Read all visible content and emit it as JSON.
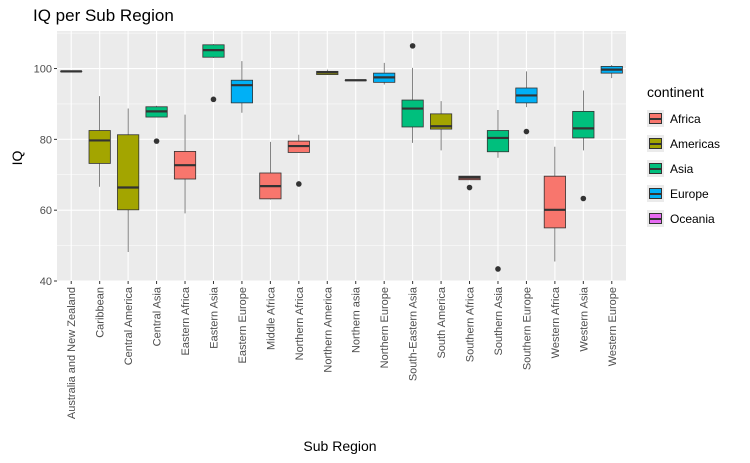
{
  "chart_data": {
    "type": "boxplot",
    "title": "IQ per Sub Region",
    "xlabel": "Sub Region",
    "ylabel": "IQ",
    "ylim": [
      40,
      110.6
    ],
    "yticks": [
      40,
      60,
      80,
      100
    ],
    "grid": true,
    "legend_position": "right",
    "legend": {
      "title": "continent",
      "items": [
        {
          "name": "Africa",
          "color": "#F8766D"
        },
        {
          "name": "Americas",
          "color": "#A3A500"
        },
        {
          "name": "Asia",
          "color": "#00BF7D"
        },
        {
          "name": "Europe",
          "color": "#00B0F6"
        },
        {
          "name": "Oceania",
          "color": "#E76BF3"
        }
      ]
    },
    "categories": [
      "Australia and New Zealand",
      "Caribbean",
      "Central America",
      "Central Asia",
      "Eastern Africa",
      "Eastern Asia",
      "Eastern Europe",
      "Middle Africa",
      "Northern Africa",
      "Northern America",
      "Northern asia",
      "Northern Europe",
      "South-Eastern Asia",
      "South America",
      "Southern Africa",
      "Southern Asia",
      "Southern Europe",
      "Western Africa",
      "Western Asia",
      "Western Europe"
    ],
    "boxes": [
      {
        "continent": "Oceania",
        "min": 99.2,
        "q1": 99.2,
        "median": 99.2,
        "q3": 99.2,
        "max": 99.2,
        "outliers": []
      },
      {
        "continent": "Americas",
        "min": 66.6,
        "q1": 73.2,
        "median": 79.7,
        "q3": 82.5,
        "max": 92.2,
        "outliers": []
      },
      {
        "continent": "Americas",
        "min": 48.2,
        "q1": 60.1,
        "median": 66.4,
        "q3": 81.3,
        "max": 88.7,
        "outliers": []
      },
      {
        "continent": "Asia",
        "min": 86.3,
        "q1": 86.3,
        "median": 87.9,
        "q3": 89.2,
        "max": 89.5,
        "outliers": [
          79.5
        ]
      },
      {
        "continent": "Africa",
        "min": 59.1,
        "q1": 68.8,
        "median": 72.7,
        "q3": 76.6,
        "max": 87.0,
        "outliers": []
      },
      {
        "continent": "Asia",
        "min": 103.0,
        "q1": 103.2,
        "median": 105.2,
        "q3": 106.7,
        "max": 106.9,
        "outliers": [
          91.3
        ]
      },
      {
        "continent": "Europe",
        "min": 87.5,
        "q1": 90.3,
        "median": 95.3,
        "q3": 96.7,
        "max": 102.1,
        "outliers": []
      },
      {
        "continent": "Africa",
        "min": 63.0,
        "q1": 63.2,
        "median": 66.8,
        "q3": 70.5,
        "max": 79.3,
        "outliers": []
      },
      {
        "continent": "Africa",
        "min": 76.3,
        "q1": 76.3,
        "median": 78.1,
        "q3": 79.5,
        "max": 81.3,
        "outliers": [
          67.4
        ]
      },
      {
        "continent": "Americas",
        "min": 98.2,
        "q1": 98.3,
        "median": 98.9,
        "q3": 99.2,
        "max": 99.7,
        "outliers": []
      },
      {
        "continent": "Asia",
        "min": 96.7,
        "q1": 96.7,
        "median": 96.7,
        "q3": 96.7,
        "max": 96.7,
        "outliers": []
      },
      {
        "continent": "Europe",
        "min": 95.5,
        "q1": 96.1,
        "median": 97.5,
        "q3": 98.7,
        "max": 101.6,
        "outliers": []
      },
      {
        "continent": "Asia",
        "min": 79.0,
        "q1": 83.5,
        "median": 88.7,
        "q3": 91.1,
        "max": 100.2,
        "outliers": [
          106.4
        ]
      },
      {
        "continent": "Americas",
        "min": 76.9,
        "q1": 82.9,
        "median": 83.7,
        "q3": 87.2,
        "max": 90.8,
        "outliers": []
      },
      {
        "continent": "Africa",
        "min": 68.6,
        "q1": 68.6,
        "median": 69.2,
        "q3": 69.6,
        "max": 69.7,
        "outliers": [
          66.4
        ]
      },
      {
        "continent": "Asia",
        "min": 74.8,
        "q1": 76.5,
        "median": 80.4,
        "q3": 82.5,
        "max": 88.3,
        "outliers": [
          43.4
        ]
      },
      {
        "continent": "Europe",
        "min": 89.1,
        "q1": 90.3,
        "median": 92.4,
        "q3": 94.5,
        "max": 99.2,
        "outliers": [
          82.2
        ]
      },
      {
        "continent": "Africa",
        "min": 45.5,
        "q1": 55.0,
        "median": 60.1,
        "q3": 69.6,
        "max": 77.9,
        "outliers": []
      },
      {
        "continent": "Asia",
        "min": 76.9,
        "q1": 80.4,
        "median": 83.1,
        "q3": 87.9,
        "max": 93.8,
        "outliers": [
          63.3
        ]
      },
      {
        "continent": "Europe",
        "min": 97.3,
        "q1": 98.7,
        "median": 99.7,
        "q3": 100.6,
        "max": 101.0,
        "outliers": []
      }
    ]
  }
}
